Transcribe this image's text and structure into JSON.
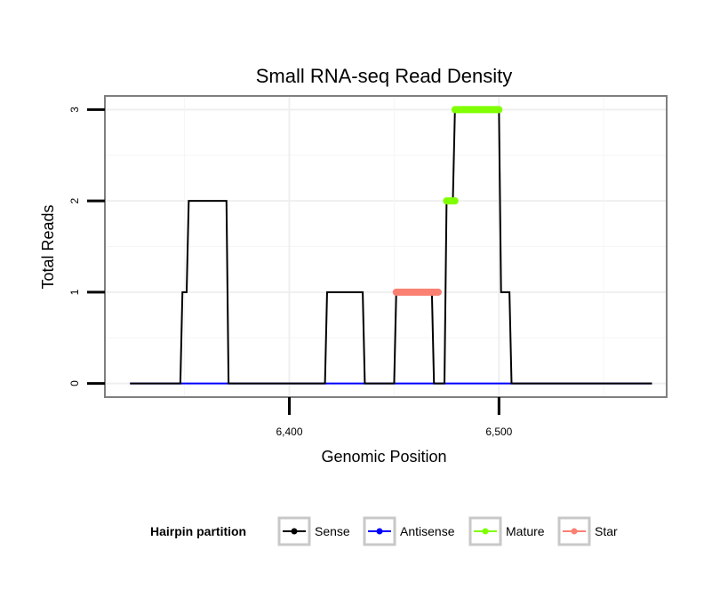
{
  "chart_data": {
    "type": "line",
    "title": "Small RNA-seq Read Density",
    "xlabel": "Genomic Position",
    "ylabel": "Total Reads",
    "xlim": [
      6312,
      6580
    ],
    "ylim": [
      -0.15,
      3.15
    ],
    "x_ticks": [
      6400,
      6500
    ],
    "x_tick_labels": [
      "6,400",
      "6,500"
    ],
    "y_ticks": [
      0,
      1,
      2,
      3
    ],
    "y_tick_labels": [
      "0",
      "1",
      "2",
      "3"
    ],
    "grid": true,
    "legend": {
      "title": "Hairpin partition",
      "placement": "bottom",
      "entries": [
        {
          "name": "Sense",
          "color": "#000000"
        },
        {
          "name": "Antisense",
          "color": "#0000ff"
        },
        {
          "name": "Mature",
          "color": "#7fff00"
        },
        {
          "name": "Star",
          "color": "#fa8072"
        }
      ]
    },
    "series": [
      {
        "name": "Sense",
        "color": "#000000",
        "kind": "line",
        "x": [
          6324,
          6348,
          6349,
          6351,
          6352,
          6370,
          6371,
          6417,
          6418,
          6435,
          6436,
          6450,
          6451,
          6468,
          6469,
          6474,
          6475,
          6478,
          6479,
          6500,
          6501,
          6505,
          6506,
          6573
        ],
        "y": [
          0,
          0,
          1,
          1,
          2,
          2,
          0,
          0,
          1,
          1,
          0,
          0,
          1,
          1,
          0,
          0,
          2,
          2,
          3,
          3,
          1,
          1,
          0,
          0
        ]
      },
      {
        "name": "Antisense",
        "color": "#0000ff",
        "kind": "line",
        "x": [
          6324,
          6573
        ],
        "y": [
          0,
          0
        ]
      },
      {
        "name": "Mature",
        "color": "#7fff00",
        "kind": "segments",
        "segments": [
          {
            "x": [
              6475,
              6479
            ],
            "y": 2
          },
          {
            "x": [
              6479,
              6500
            ],
            "y": 3
          }
        ]
      },
      {
        "name": "Star",
        "color": "#fa8072",
        "kind": "segments",
        "segments": [
          {
            "x": [
              6451,
              6471
            ],
            "y": 1
          }
        ]
      }
    ]
  }
}
